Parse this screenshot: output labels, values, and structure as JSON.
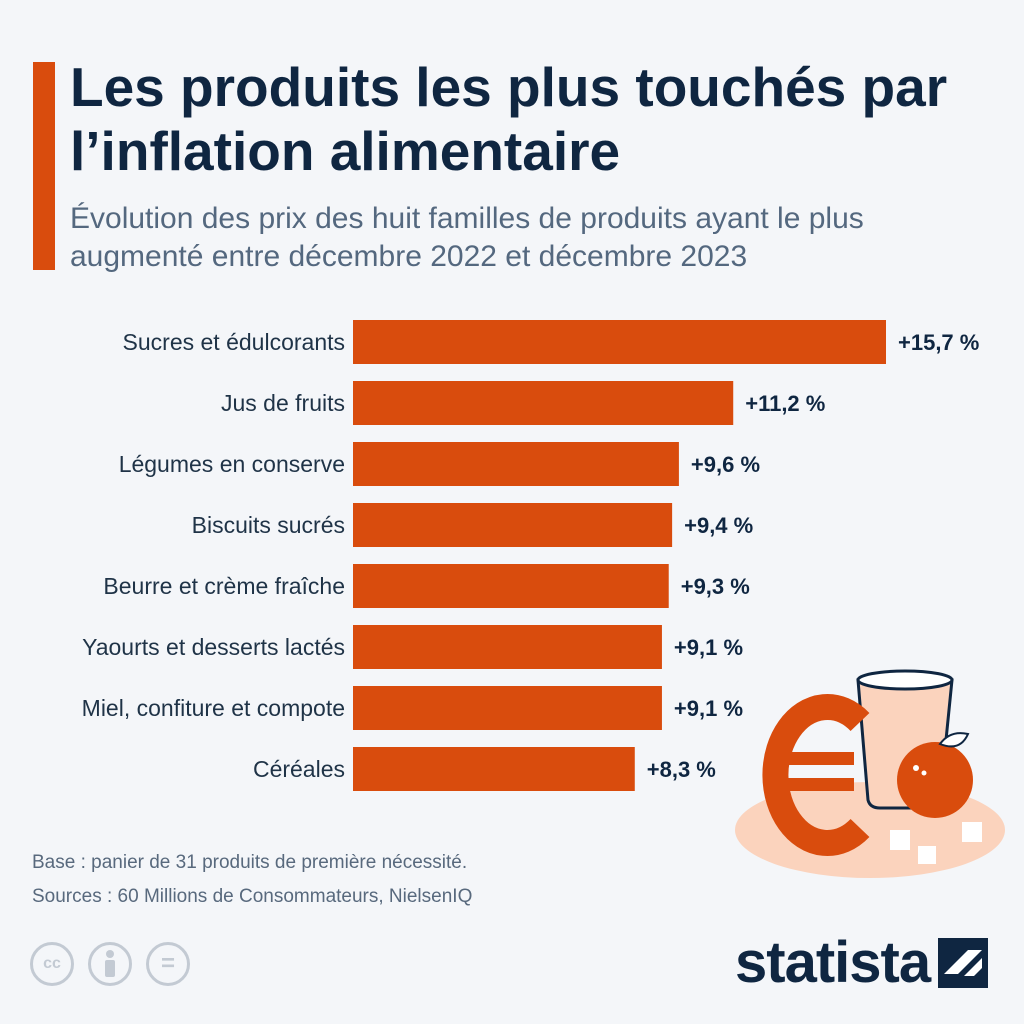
{
  "title": "Les produits les plus touchés par l’inflation alimentaire",
  "subtitle": "Évolution des prix des huit familles de produits ayant le plus augmenté entre décembre 2022 et décembre 2023",
  "chart_data": {
    "type": "bar",
    "orientation": "horizontal",
    "categories": [
      "Sucres et édulcorants",
      "Jus de fruits",
      "Légumes en conserve",
      "Biscuits sucrés",
      "Beurre et crème fraîche",
      "Yaourts et desserts lactés",
      "Miel, confiture et compote",
      "Céréales"
    ],
    "values": [
      15.7,
      11.2,
      9.6,
      9.4,
      9.3,
      9.1,
      9.1,
      8.3
    ],
    "value_labels": [
      "+15,7 %",
      "+11,2 %",
      "+9,6 %",
      "+9,4 %",
      "+9,3 %",
      "+9,1 %",
      "+9,1 %",
      "+8,3 %"
    ],
    "unit": "%",
    "bar_color": "#d94c0d",
    "grid": false,
    "legend": "none"
  },
  "footer": {
    "base": "Base : panier de 31 produits de première nécessité.",
    "sources": "Sources : 60 Millions de Consommateurs, NielsenIQ"
  },
  "license": {
    "cc_label": "cc",
    "nd_label": "="
  },
  "brand": {
    "name": "statista"
  },
  "icons": [
    "cc-icon",
    "attribution-icon",
    "no-derivatives-icon",
    "euro-icon",
    "juice-glass-icon",
    "orange-icon",
    "sugar-cube-icon",
    "statista-logo-icon"
  ],
  "colors": {
    "accent": "#d94c0d",
    "title": "#0f2641",
    "subtitle": "#54687f",
    "background": "#f4f6f9"
  }
}
